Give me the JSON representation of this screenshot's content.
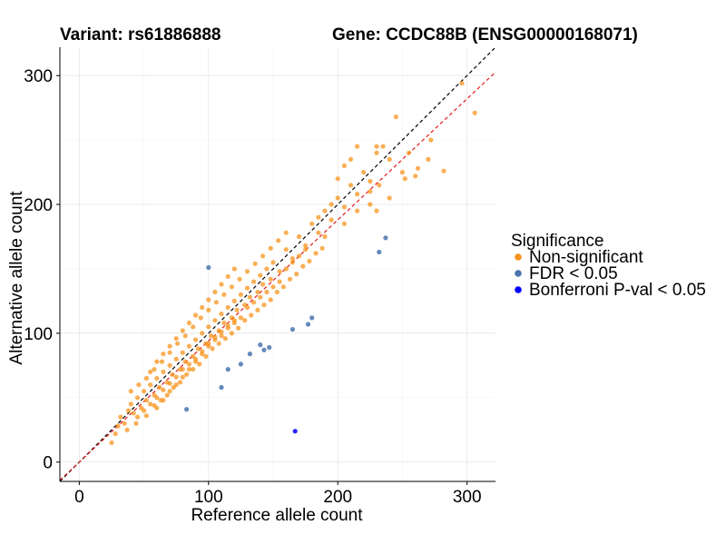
{
  "chart_data": {
    "type": "scatter",
    "title_left": "Variant: rs61886888",
    "title_right": "Gene: CCDC88B (ENSG00000168071)",
    "xlabel": "Reference allele count",
    "ylabel": "Alternative allele count",
    "xlim": [
      -15,
      322
    ],
    "ylim": [
      -15,
      322
    ],
    "xticks": [
      0,
      100,
      200,
      300
    ],
    "yticks": [
      0,
      100,
      200,
      300
    ],
    "grid": true,
    "legend": {
      "title": "Significance",
      "placement": "right",
      "entries": [
        {
          "label": "Non-significant",
          "color": "#f7941d"
        },
        {
          "label": "FDR < 0.05",
          "color": "#4a76b0"
        },
        {
          "label": "Bonferroni P-val < 0.05",
          "color": "#0000ff"
        }
      ]
    },
    "reference_lines": [
      {
        "name": "identity",
        "slope": 1.0,
        "intercept": 0,
        "color": "#000000",
        "dash": "dashed"
      },
      {
        "name": "fit",
        "slope": 0.94,
        "intercept": 0,
        "color": "#e41a1c",
        "dash": "dashed"
      }
    ],
    "series": [
      {
        "group": "Non-significant",
        "color": "#f7941d",
        "points": [
          [
            25,
            15
          ],
          [
            28,
            22
          ],
          [
            30,
            28
          ],
          [
            32,
            35
          ],
          [
            35,
            30
          ],
          [
            38,
            40
          ],
          [
            40,
            45
          ],
          [
            42,
            38
          ],
          [
            45,
            50
          ],
          [
            48,
            42
          ],
          [
            50,
            55
          ],
          [
            52,
            48
          ],
          [
            55,
            60
          ],
          [
            58,
            52
          ],
          [
            60,
            65
          ],
          [
            62,
            58
          ],
          [
            65,
            70
          ],
          [
            68,
            62
          ],
          [
            70,
            75
          ],
          [
            72,
            68
          ],
          [
            75,
            80
          ],
          [
            78,
            72
          ],
          [
            80,
            85
          ],
          [
            82,
            78
          ],
          [
            85,
            90
          ],
          [
            88,
            82
          ],
          [
            90,
            95
          ],
          [
            92,
            88
          ],
          [
            95,
            100
          ],
          [
            98,
            92
          ],
          [
            100,
            105
          ],
          [
            102,
            98
          ],
          [
            105,
            110
          ],
          [
            108,
            102
          ],
          [
            110,
            115
          ],
          [
            112,
            108
          ],
          [
            115,
            120
          ],
          [
            118,
            112
          ],
          [
            120,
            125
          ],
          [
            122,
            118
          ],
          [
            125,
            130
          ],
          [
            128,
            122
          ],
          [
            130,
            135
          ],
          [
            132,
            128
          ],
          [
            135,
            140
          ],
          [
            138,
            132
          ],
          [
            140,
            145
          ],
          [
            142,
            138
          ],
          [
            145,
            150
          ],
          [
            148,
            142
          ],
          [
            150,
            155
          ],
          [
            155,
            148
          ],
          [
            160,
            165
          ],
          [
            165,
            158
          ],
          [
            170,
            175
          ],
          [
            175,
            168
          ],
          [
            180,
            185
          ],
          [
            185,
            178
          ],
          [
            190,
            195
          ],
          [
            195,
            188
          ],
          [
            200,
            205
          ],
          [
            205,
            198
          ],
          [
            210,
            215
          ],
          [
            215,
            208
          ],
          [
            220,
            225
          ],
          [
            225,
            218
          ],
          [
            230,
            240
          ],
          [
            235,
            245
          ],
          [
            240,
            235
          ],
          [
            245,
            268
          ],
          [
            250,
            225
          ],
          [
            255,
            240
          ],
          [
            260,
            222
          ],
          [
            270,
            235
          ],
          [
            282,
            226
          ],
          [
            296,
            294
          ],
          [
            306,
            271
          ],
          [
            60,
            42
          ],
          [
            65,
            48
          ],
          [
            70,
            55
          ],
          [
            75,
            60
          ],
          [
            80,
            66
          ],
          [
            85,
            72
          ],
          [
            90,
            78
          ],
          [
            95,
            84
          ],
          [
            100,
            90
          ],
          [
            105,
            95
          ],
          [
            110,
            98
          ],
          [
            115,
            104
          ],
          [
            120,
            108
          ],
          [
            125,
            112
          ],
          [
            55,
            70
          ],
          [
            60,
            78
          ],
          [
            65,
            84
          ],
          [
            70,
            90
          ],
          [
            75,
            96
          ],
          [
            80,
            102
          ],
          [
            85,
            108
          ],
          [
            90,
            114
          ],
          [
            95,
            120
          ],
          [
            100,
            126
          ],
          [
            105,
            132
          ],
          [
            110,
            138
          ],
          [
            115,
            144
          ],
          [
            120,
            150
          ],
          [
            45,
            35
          ],
          [
            50,
            40
          ],
          [
            55,
            45
          ],
          [
            60,
            50
          ],
          [
            65,
            56
          ],
          [
            70,
            61
          ],
          [
            75,
            66
          ],
          [
            80,
            72
          ],
          [
            85,
            76
          ],
          [
            90,
            80
          ],
          [
            95,
            86
          ],
          [
            100,
            92
          ],
          [
            105,
            97
          ],
          [
            110,
            101
          ],
          [
            115,
            106
          ],
          [
            120,
            110
          ],
          [
            130,
            120
          ],
          [
            135,
            124
          ],
          [
            140,
            128
          ],
          [
            145,
            132
          ],
          [
            150,
            136
          ],
          [
            155,
            140
          ],
          [
            160,
            150
          ],
          [
            165,
            155
          ],
          [
            170,
            160
          ],
          [
            175,
            165
          ],
          [
            185,
            190
          ],
          [
            195,
            200
          ],
          [
            200,
            220
          ],
          [
            205,
            230
          ],
          [
            210,
            235
          ],
          [
            215,
            245
          ],
          [
            230,
            245
          ],
          [
            225,
            210
          ],
          [
            230,
            195
          ],
          [
            240,
            205
          ],
          [
            252,
            220
          ],
          [
            262,
            228
          ],
          [
            272,
            250
          ],
          [
            190,
            175
          ],
          [
            205,
            185
          ],
          [
            215,
            195
          ],
          [
            225,
            200
          ],
          [
            232,
            215
          ],
          [
            37,
            25
          ],
          [
            44,
            30
          ],
          [
            52,
            36
          ],
          [
            58,
            44
          ],
          [
            63,
            48
          ],
          [
            68,
            52
          ],
          [
            73,
            58
          ],
          [
            78,
            62
          ],
          [
            83,
            68
          ],
          [
            88,
            72
          ],
          [
            93,
            76
          ],
          [
            98,
            82
          ],
          [
            103,
            88
          ],
          [
            108,
            92
          ],
          [
            113,
            96
          ],
          [
            118,
            100
          ],
          [
            123,
            104
          ],
          [
            128,
            110
          ],
          [
            133,
            114
          ],
          [
            138,
            118
          ],
          [
            143,
            122
          ],
          [
            148,
            126
          ],
          [
            153,
            132
          ],
          [
            158,
            136
          ],
          [
            163,
            142
          ],
          [
            168,
            146
          ],
          [
            173,
            152
          ],
          [
            178,
            156
          ],
          [
            183,
            162
          ],
          [
            188,
            166
          ],
          [
            40,
            55
          ],
          [
            46,
            60
          ],
          [
            52,
            65
          ],
          [
            58,
            72
          ],
          [
            64,
            78
          ],
          [
            70,
            85
          ],
          [
            76,
            92
          ],
          [
            82,
            98
          ],
          [
            88,
            105
          ],
          [
            94,
            112
          ],
          [
            100,
            118
          ],
          [
            106,
            124
          ],
          [
            112,
            130
          ],
          [
            118,
            136
          ],
          [
            124,
            142
          ],
          [
            130,
            148
          ],
          [
            136,
            154
          ],
          [
            142,
            160
          ],
          [
            148,
            166
          ],
          [
            154,
            172
          ],
          [
            160,
            178
          ]
        ]
      },
      {
        "group": "FDR < 0.05",
        "color": "#4a76b0",
        "points": [
          [
            100,
            151
          ],
          [
            83,
            41
          ],
          [
            110,
            58
          ],
          [
            115,
            72
          ],
          [
            125,
            76
          ],
          [
            132,
            84
          ],
          [
            140,
            91
          ],
          [
            143,
            87
          ],
          [
            147,
            89
          ],
          [
            165,
            103
          ],
          [
            177,
            107
          ],
          [
            180,
            112
          ],
          [
            232,
            163
          ],
          [
            237,
            174
          ]
        ]
      },
      {
        "group": "Bonferroni P-val < 0.05",
        "color": "#0000ff",
        "points": [
          [
            167,
            24
          ]
        ]
      }
    ]
  }
}
